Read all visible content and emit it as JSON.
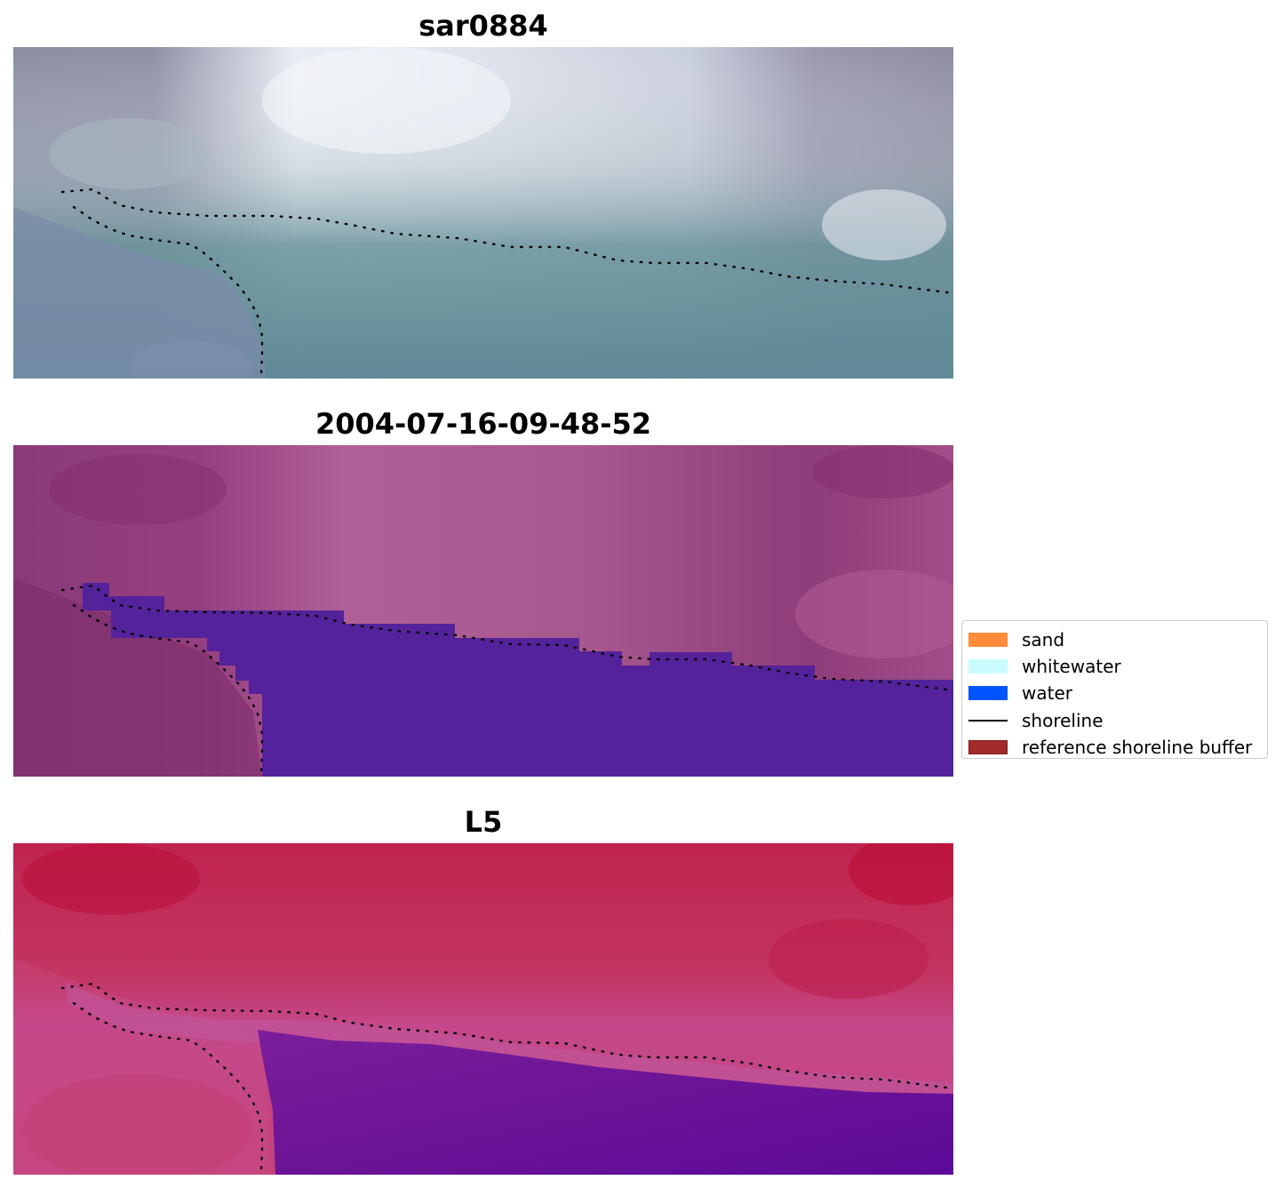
{
  "panels": [
    {
      "title": "sar0884",
      "image_type": "rgb-satellite-image"
    },
    {
      "title": "2004-07-16-09-48-52",
      "image_type": "classified-image-with-water-overlay"
    },
    {
      "title": "L5",
      "image_type": "false-color-satellite-image"
    }
  ],
  "legend": {
    "entries": [
      {
        "label": "sand",
        "color": "#ff8c3a",
        "kind": "patch"
      },
      {
        "label": "whitewater",
        "color": "#c8fcfc",
        "kind": "patch"
      },
      {
        "label": "water",
        "color": "#0055ff",
        "kind": "patch"
      },
      {
        "label": "shoreline",
        "color": "#000000",
        "kind": "line"
      },
      {
        "label": "reference shoreline buffer",
        "color": "#a32b2b",
        "kind": "patch"
      }
    ]
  },
  "colors": {
    "water_overlay": "#54229a",
    "shoreline_points": "#000000"
  }
}
